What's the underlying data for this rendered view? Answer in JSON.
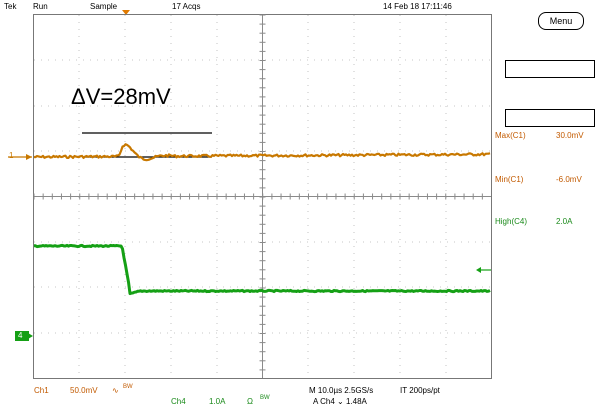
{
  "header": {
    "brand": "Tek",
    "run_state": "Run",
    "acq_mode": "Sample",
    "acq_count": "17 Acqs",
    "timestamp": "14 Feb 18 17:11:46"
  },
  "menu": {
    "label": "Menu"
  },
  "annotation": {
    "delta_label": "ΔV=28mV"
  },
  "markers": {
    "ch1": "1",
    "ch4": "4"
  },
  "measurements": [
    {
      "label": "Max(C1)",
      "value": "30.0mV",
      "channel": "C1"
    },
    {
      "label": "Min(C1)",
      "value": "-6.0mV",
      "channel": "C1"
    },
    {
      "label": "High(C4)",
      "value": "2.0A",
      "channel": "C4"
    }
  ],
  "footer": {
    "ch1_name": "Ch1",
    "ch1_scale": "50.0mV",
    "ch1_bw": "BW",
    "ch4_name": "Ch4",
    "ch4_scale": "1.0A",
    "ch4_ohm": "Ω",
    "ch4_bw": "BW",
    "timebase": "M 10.0µs 2.5GS/s",
    "ch4_trigger": "A  Ch4  ⌄  1.48A",
    "record_interval": "IT 200ps/pt"
  },
  "colors": {
    "ch1": "#c87800",
    "ch4": "#15a015",
    "grid": "#9a9a9a"
  }
}
